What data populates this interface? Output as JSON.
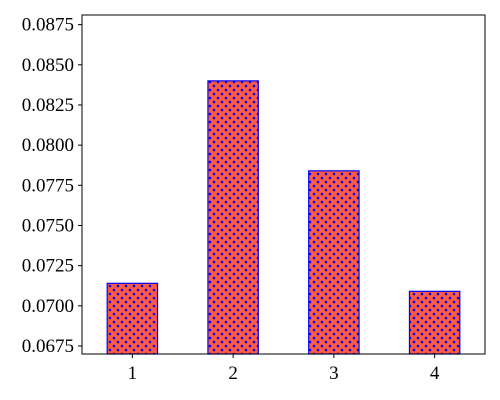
{
  "chart_data": {
    "type": "bar",
    "title": "",
    "xlabel": "",
    "ylabel": "",
    "categories": [
      "1",
      "2",
      "3",
      "4"
    ],
    "values": [
      0.0714,
      0.084,
      0.0784,
      0.0709
    ],
    "ylim": [
      0.067,
      0.0881
    ],
    "yticks": [
      0.0675,
      0.07,
      0.0725,
      0.075,
      0.0775,
      0.08,
      0.0825,
      0.085,
      0.0875
    ],
    "ytick_labels": [
      "0.0675",
      "0.0700",
      "0.0725",
      "0.0750",
      "0.0775",
      "0.0800",
      "0.0825",
      "0.0850",
      "0.0875"
    ],
    "grid": false,
    "legend": "none",
    "bar_fill_color": "#ff5a40",
    "bar_edge_color": "#0000ff",
    "hatch": "dots",
    "hatch_color": "#0000ff"
  }
}
